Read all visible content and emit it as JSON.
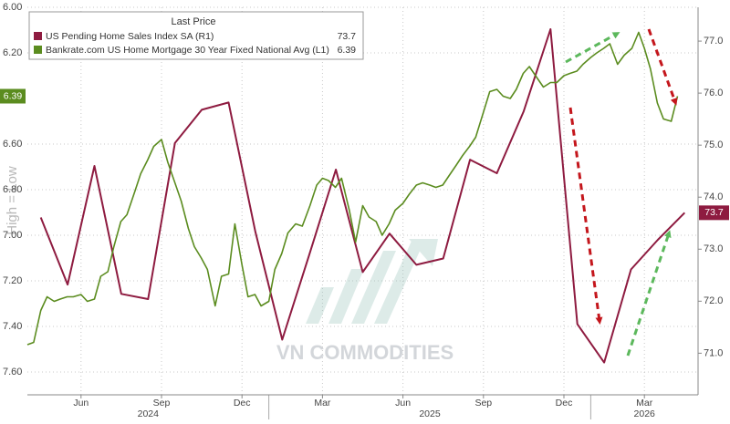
{
  "chart_data": {
    "type": "line",
    "y_label": "High = Low",
    "legend_header": "Last Price",
    "watermark": "VN COMMODITIES",
    "xlim": [
      "2024-04",
      "2026-05"
    ],
    "xticks": [
      {
        "value": "2024-06",
        "label": "Jun"
      },
      {
        "value": "2024-09",
        "label": "Sep"
      },
      {
        "value": "2024-12",
        "label": "Dec"
      },
      {
        "value": "2025-03",
        "label": "Mar"
      },
      {
        "value": "2025-06",
        "label": "Jun"
      },
      {
        "value": "2025-09",
        "label": "Sep"
      },
      {
        "value": "2025-12",
        "label": "Dec"
      },
      {
        "value": "2026-03",
        "label": "Mar"
      }
    ],
    "years": [
      2024,
      2025,
      2026
    ],
    "ylim": [
      6.0,
      7.7
    ],
    "y_inverted": true,
    "yticks": [
      {
        "value": 6.0,
        "label": "6.00"
      },
      {
        "value": 6.2,
        "label": "6.20"
      },
      {
        "value": 6.6,
        "label": "6.60"
      },
      {
        "value": 6.8,
        "label": "6.80"
      },
      {
        "value": 7.0,
        "label": "7.00"
      },
      {
        "value": 7.2,
        "label": "7.20"
      },
      {
        "value": 7.4,
        "label": "7.40"
      },
      {
        "value": 7.6,
        "label": "7.60"
      }
    ],
    "y2lim": [
      70.2,
      77.65
    ],
    "y2ticks": [
      {
        "value": 71,
        "label": "71.0"
      },
      {
        "value": 72,
        "label": "72.0"
      },
      {
        "value": 73,
        "label": "73.0"
      },
      {
        "value": 74,
        "label": "74.0"
      },
      {
        "value": 75,
        "label": "75.0"
      },
      {
        "value": 76,
        "label": "76.0"
      },
      {
        "value": 77,
        "label": "77.0"
      }
    ],
    "grid": true,
    "series": [
      {
        "name": "US Pending Home Sales Index SA  (R1)",
        "color": "#8e1b40",
        "axis": "y2",
        "x": [
          "2024-04",
          "2024-05",
          "2024-06",
          "2024-07",
          "2024-08",
          "2024-09",
          "2024-10",
          "2024-11",
          "2024-12",
          "2025-01",
          "2025-02",
          "2025-03",
          "2025-04",
          "2025-05",
          "2025-06",
          "2025-07",
          "2025-08",
          "2025-09",
          "2025-10",
          "2025-11",
          "2025-12",
          "2026-01",
          "2026-02",
          "2026-03",
          "2026-04"
        ],
        "values": [
          73.61,
          72.32,
          74.6,
          72.14,
          72.04,
          75.04,
          75.68,
          75.82,
          73.33,
          71.26,
          72.88,
          74.53,
          72.56,
          73.3,
          72.7,
          72.82,
          74.72,
          74.46,
          75.65,
          77.23,
          71.56,
          70.82,
          72.61,
          73.18,
          73.7
        ]
      },
      {
        "name": "Bankrate.com US Home Mortgage 30 Year Fixed National Avg  (L1)",
        "color": "#5b8c1f",
        "axis": "y",
        "x": [
          "2024-04-01",
          "2024-04-08",
          "2024-04-16",
          "2024-04-23",
          "2024-05-01",
          "2024-05-08",
          "2024-05-16",
          "2024-05-23",
          "2024-06-01",
          "2024-06-08",
          "2024-06-16",
          "2024-06-23",
          "2024-07-01",
          "2024-07-08",
          "2024-07-16",
          "2024-07-23",
          "2024-08-01",
          "2024-08-08",
          "2024-08-16",
          "2024-08-23",
          "2024-09-01",
          "2024-09-08",
          "2024-09-16",
          "2024-09-23",
          "2024-10-01",
          "2024-10-08",
          "2024-10-16",
          "2024-10-23",
          "2024-11-01",
          "2024-11-08",
          "2024-11-16",
          "2024-11-23",
          "2024-12-01",
          "2024-12-08",
          "2024-12-16",
          "2024-12-23",
          "2025-01-01",
          "2025-01-08",
          "2025-01-16",
          "2025-01-23",
          "2025-02-01",
          "2025-02-08",
          "2025-02-16",
          "2025-02-23",
          "2025-03-01",
          "2025-03-08",
          "2025-03-16",
          "2025-03-23",
          "2025-04-01",
          "2025-04-08",
          "2025-04-16",
          "2025-04-23",
          "2025-05-01",
          "2025-05-08",
          "2025-05-16",
          "2025-05-23",
          "2025-06-01",
          "2025-06-08",
          "2025-06-16",
          "2025-06-23",
          "2025-07-01",
          "2025-07-08",
          "2025-07-16",
          "2025-07-23",
          "2025-08-01",
          "2025-08-08",
          "2025-08-16",
          "2025-08-23",
          "2025-09-01",
          "2025-09-08",
          "2025-09-16",
          "2025-09-23",
          "2025-10-01",
          "2025-10-08",
          "2025-10-16",
          "2025-10-23",
          "2025-11-01",
          "2025-11-08",
          "2025-11-16",
          "2025-11-23",
          "2025-12-01",
          "2025-12-08",
          "2025-12-16",
          "2025-12-23",
          "2026-01-01",
          "2026-01-08",
          "2026-01-16",
          "2026-01-23",
          "2026-02-01",
          "2026-02-08",
          "2026-02-16",
          "2026-02-23",
          "2026-03-01",
          "2026-03-08",
          "2026-03-16",
          "2026-03-23",
          "2026-04-01",
          "2026-04-08"
        ],
        "values": [
          7.48,
          7.47,
          7.33,
          7.27,
          7.29,
          7.28,
          7.27,
          7.27,
          7.26,
          7.29,
          7.28,
          7.18,
          7.16,
          7.05,
          6.94,
          6.91,
          6.81,
          6.73,
          6.67,
          6.61,
          6.58,
          6.68,
          6.77,
          6.85,
          6.97,
          7.05,
          7.1,
          7.15,
          7.31,
          7.18,
          7.17,
          6.95,
          7.13,
          7.27,
          7.26,
          7.31,
          7.29,
          7.15,
          7.08,
          6.99,
          6.95,
          6.96,
          6.87,
          6.78,
          6.75,
          6.76,
          6.79,
          6.75,
          6.89,
          7.03,
          6.87,
          6.92,
          6.94,
          7.0,
          6.95,
          6.89,
          6.86,
          6.82,
          6.78,
          6.77,
          6.78,
          6.79,
          6.78,
          6.74,
          6.69,
          6.65,
          6.61,
          6.57,
          6.46,
          6.37,
          6.36,
          6.39,
          6.4,
          6.36,
          6.29,
          6.26,
          6.31,
          6.35,
          6.33,
          6.33,
          6.3,
          6.29,
          6.28,
          6.25,
          6.22,
          6.2,
          6.18,
          6.16,
          6.25,
          6.21,
          6.18,
          6.11,
          6.18,
          6.27,
          6.42,
          6.49,
          6.5,
          6.39
        ]
      }
    ]
  }
}
